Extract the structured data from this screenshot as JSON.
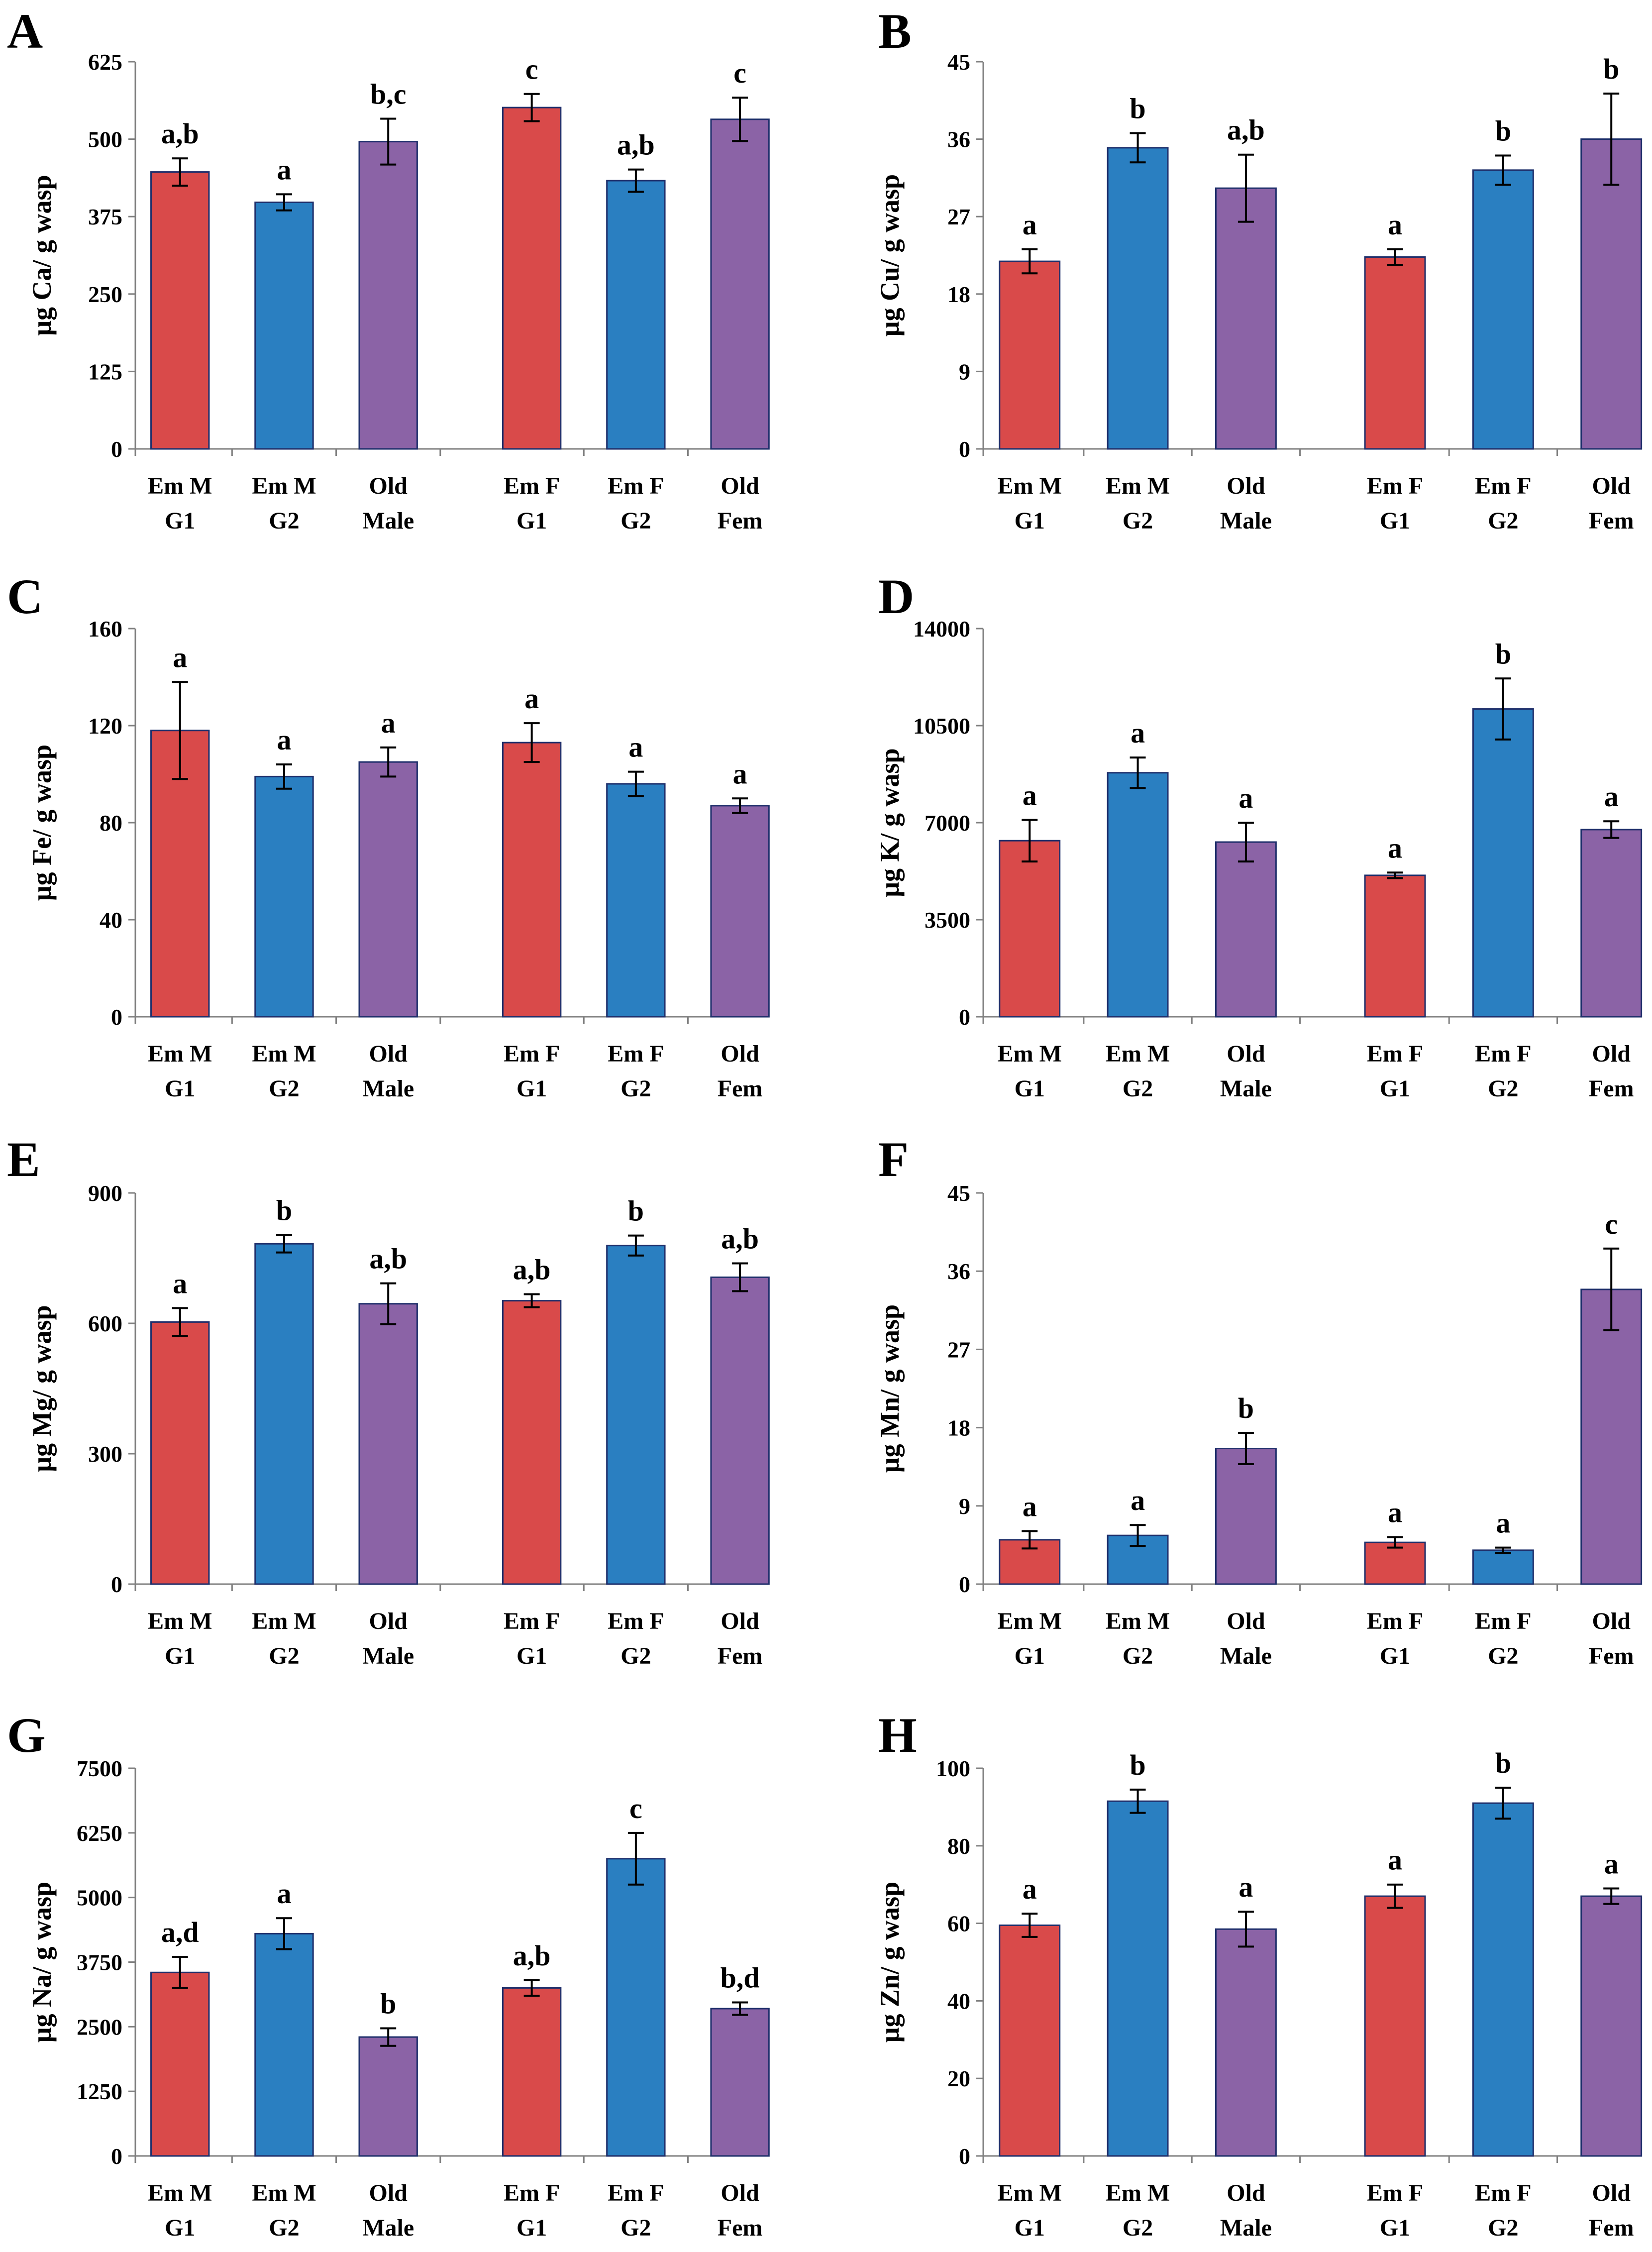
{
  "colors": {
    "em_g1": "#d94a4a",
    "em_g2": "#2a7fc1",
    "old": "#8b63a6"
  },
  "chart_data": [
    {
      "type": "bar",
      "panel": "A",
      "title": "",
      "ylabel": "μg Ca/ g wasp",
      "ylim": [
        0,
        625
      ],
      "yticks": [
        0,
        125,
        250,
        375,
        500,
        625
      ],
      "categories": [
        [
          "Em M",
          "G1"
        ],
        [
          "Em M",
          "G2"
        ],
        [
          "Old",
          "Male"
        ],
        [
          "Em F",
          "G1"
        ],
        [
          "Em F",
          "G2"
        ],
        [
          "Old",
          "Fem"
        ]
      ],
      "values": [
        447,
        398,
        496,
        551,
        433,
        532
      ],
      "errors": [
        22,
        13,
        37,
        22,
        18,
        35
      ],
      "significance": [
        "a,b",
        "a",
        "b,c",
        "c",
        "a,b",
        "c"
      ]
    },
    {
      "type": "bar",
      "panel": "B",
      "title": "",
      "ylabel": "μg Cu/ g wasp",
      "ylim": [
        0,
        45
      ],
      "yticks": [
        0,
        9,
        18,
        27,
        36,
        45
      ],
      "categories": [
        [
          "Em M",
          "G1"
        ],
        [
          "Em M",
          "G2"
        ],
        [
          "Old",
          "Male"
        ],
        [
          "Em F",
          "G1"
        ],
        [
          "Em F",
          "G2"
        ],
        [
          "Old",
          "Fem"
        ]
      ],
      "values": [
        21.8,
        35.0,
        30.3,
        22.3,
        32.4,
        36.0
      ],
      "errors": [
        1.4,
        1.7,
        3.9,
        0.9,
        1.7,
        5.3
      ],
      "significance": [
        "a",
        "b",
        "a,b",
        "a",
        "b",
        "b"
      ]
    },
    {
      "type": "bar",
      "panel": "C",
      "title": "",
      "ylabel": "μg Fe/ g wasp",
      "ylim": [
        0,
        160
      ],
      "yticks": [
        0,
        40,
        80,
        120,
        160
      ],
      "categories": [
        [
          "Em M",
          "G1"
        ],
        [
          "Em M",
          "G2"
        ],
        [
          "Old",
          "Male"
        ],
        [
          "Em F",
          "G1"
        ],
        [
          "Em F",
          "G2"
        ],
        [
          "Old",
          "Fem"
        ]
      ],
      "values": [
        118,
        99,
        105,
        113,
        96,
        87
      ],
      "errors": [
        20,
        5,
        6,
        8,
        5,
        3
      ],
      "significance": [
        "a",
        "a",
        "a",
        "a",
        "a",
        "a"
      ]
    },
    {
      "type": "bar",
      "panel": "D",
      "title": "",
      "ylabel": "μg K/ g wasp",
      "ylim": [
        0,
        14000
      ],
      "yticks": [
        0,
        3500,
        7000,
        10500,
        14000
      ],
      "categories": [
        [
          "Em M",
          "G1"
        ],
        [
          "Em M",
          "G2"
        ],
        [
          "Old",
          "Male"
        ],
        [
          "Em F",
          "G1"
        ],
        [
          "Em F",
          "G2"
        ],
        [
          "Old",
          "Fem"
        ]
      ],
      "values": [
        6350,
        8800,
        6300,
        5100,
        11100,
        6750
      ],
      "errors": [
        750,
        550,
        700,
        100,
        1100,
        300
      ],
      "significance": [
        "a",
        "a",
        "a",
        "a",
        "b",
        "a"
      ]
    },
    {
      "type": "bar",
      "panel": "E",
      "title": "",
      "ylabel": "μg Mg/ g wasp",
      "ylim": [
        0,
        900
      ],
      "yticks": [
        0,
        300,
        600,
        900
      ],
      "categories": [
        [
          "Em M",
          "G1"
        ],
        [
          "Em M",
          "G2"
        ],
        [
          "Old",
          "Male"
        ],
        [
          "Em F",
          "G1"
        ],
        [
          "Em F",
          "G2"
        ],
        [
          "Old",
          "Fem"
        ]
      ],
      "values": [
        603,
        783,
        645,
        652,
        779,
        706
      ],
      "errors": [
        32,
        20,
        47,
        15,
        23,
        32
      ],
      "significance": [
        "a",
        "b",
        "a,b",
        "a,b",
        "b",
        "a,b"
      ]
    },
    {
      "type": "bar",
      "panel": "F",
      "title": "",
      "ylabel": "μg Mn/ g wasp",
      "ylim": [
        0,
        45
      ],
      "yticks": [
        0,
        9,
        18,
        27,
        36,
        45
      ],
      "categories": [
        [
          "Em M",
          "G1"
        ],
        [
          "Em M",
          "G2"
        ],
        [
          "Old",
          "Male"
        ],
        [
          "Em F",
          "G1"
        ],
        [
          "Em F",
          "G2"
        ],
        [
          "Old",
          "Fem"
        ]
      ],
      "values": [
        5.1,
        5.6,
        15.6,
        4.8,
        3.9,
        33.9
      ],
      "errors": [
        1.0,
        1.2,
        1.8,
        0.6,
        0.3,
        4.7
      ],
      "significance": [
        "a",
        "a",
        "b",
        "a",
        "a",
        "c"
      ]
    },
    {
      "type": "bar",
      "panel": "G",
      "title": "",
      "ylabel": "μg Na/ g wasp",
      "ylim": [
        0,
        7500
      ],
      "yticks": [
        0,
        1250,
        2500,
        3750,
        5000,
        6250,
        7500
      ],
      "categories": [
        [
          "Em M",
          "G1"
        ],
        [
          "Em M",
          "G2"
        ],
        [
          "Old",
          "Male"
        ],
        [
          "Em F",
          "G1"
        ],
        [
          "Em F",
          "G2"
        ],
        [
          "Old",
          "Fem"
        ]
      ],
      "values": [
        3550,
        4300,
        2300,
        3250,
        5750,
        2850
      ],
      "errors": [
        300,
        300,
        170,
        150,
        500,
        120
      ],
      "significance": [
        "a,d",
        "a",
        "b",
        "a,b",
        "c",
        "b,d"
      ]
    },
    {
      "type": "bar",
      "panel": "H",
      "title": "",
      "ylabel": "μg Zn/ g wasp",
      "ylim": [
        0,
        100
      ],
      "yticks": [
        0,
        20,
        40,
        60,
        80,
        100
      ],
      "categories": [
        [
          "Em M",
          "G1"
        ],
        [
          "Em M",
          "G2"
        ],
        [
          "Old",
          "Male"
        ],
        [
          "Em F",
          "G1"
        ],
        [
          "Em F",
          "G2"
        ],
        [
          "Old",
          "Fem"
        ]
      ],
      "values": [
        59.5,
        91.5,
        58.5,
        67.0,
        91.0,
        67.0
      ],
      "errors": [
        3.0,
        3.0,
        4.5,
        3.0,
        4.0,
        2.0
      ],
      "significance": [
        "a",
        "b",
        "a",
        "a",
        "b",
        "a"
      ]
    }
  ]
}
